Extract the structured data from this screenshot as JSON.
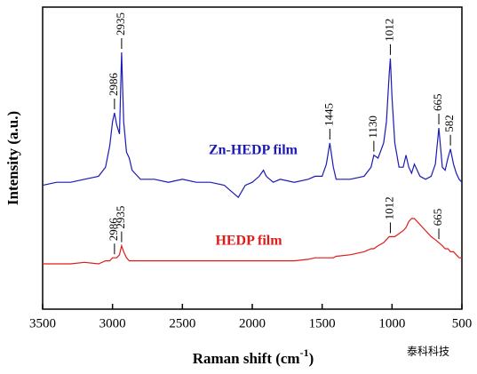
{
  "chart_data": {
    "type": "line",
    "xlabel": "Raman shift (cm",
    "xlabel_sup": "-1",
    "xlabel_end": ")",
    "ylabel": "Intensity (a.u.)",
    "xlim": [
      3500,
      500
    ],
    "ylim": [
      0,
      100
    ],
    "xticks": [
      3500,
      3000,
      2500,
      2000,
      1500,
      1000,
      500
    ],
    "x": [
      3500,
      3400,
      3300,
      3200,
      3100,
      3050,
      3020,
      3000,
      2986,
      2970,
      2950,
      2935,
      2920,
      2900,
      2880,
      2860,
      2800,
      2700,
      2600,
      2500,
      2400,
      2300,
      2200,
      2100,
      2050,
      2000,
      1950,
      1920,
      1900,
      1850,
      1800,
      1700,
      1600,
      1550,
      1500,
      1470,
      1445,
      1420,
      1400,
      1300,
      1200,
      1150,
      1130,
      1100,
      1060,
      1040,
      1020,
      1012,
      1000,
      980,
      950,
      920,
      900,
      880,
      860,
      840,
      820,
      800,
      760,
      720,
      690,
      665,
      640,
      620,
      600,
      582,
      560,
      540,
      520,
      500
    ],
    "series": [
      {
        "name": "Zn-HEDP film",
        "color": "#1a1ab4",
        "values": [
          41,
          42,
          42,
          43,
          44,
          47,
          54,
          62,
          65,
          61,
          58,
          85,
          62,
          52,
          50,
          46,
          43,
          43,
          42,
          43,
          42,
          42,
          41,
          37,
          41,
          42,
          44,
          46,
          44,
          42,
          43,
          42,
          43,
          44,
          44,
          48,
          55,
          47,
          43,
          43,
          44,
          47,
          51,
          50,
          55,
          62,
          78,
          83,
          70,
          55,
          47,
          47,
          51,
          47,
          45,
          48,
          46,
          44,
          43,
          44,
          48,
          60,
          47,
          46,
          50,
          53,
          48,
          45,
          43,
          42
        ],
        "annotations": [
          {
            "text": "2986",
            "x": 2986
          },
          {
            "text": "2935",
            "x": 2935
          },
          {
            "text": "1445",
            "x": 1445
          },
          {
            "text": "1130",
            "x": 1130
          },
          {
            "text": "1012",
            "x": 1012
          },
          {
            "text": "665",
            "x": 665
          },
          {
            "text": "582",
            "x": 582
          }
        ]
      },
      {
        "name": "HEDP film",
        "color": "#e01a1a",
        "values": [
          15,
          15,
          15,
          15.5,
          15,
          16,
          16,
          17,
          17,
          17,
          18,
          21,
          19,
          17,
          16,
          16,
          16,
          16,
          16,
          16,
          16,
          16,
          16,
          16,
          16,
          16,
          16,
          16,
          16,
          16,
          16,
          16,
          16.5,
          17,
          17,
          17,
          17,
          17,
          17.5,
          18,
          19,
          20,
          20,
          21,
          22,
          23,
          24,
          24,
          24,
          24,
          25,
          26,
          27,
          29,
          30,
          30,
          29,
          28,
          26,
          24,
          23,
          22,
          21,
          20,
          20,
          19,
          19,
          18,
          17,
          17
        ],
        "annotations": [
          {
            "text": "2986",
            "x": 2986
          },
          {
            "text": "2935",
            "x": 2935
          },
          {
            "text": "1012",
            "x": 1012
          },
          {
            "text": "665",
            "x": 665
          }
        ]
      }
    ]
  },
  "watermark": "泰科科技"
}
